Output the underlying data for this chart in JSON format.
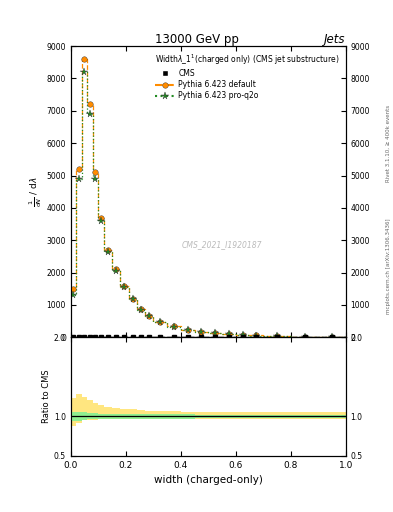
{
  "title": "13000 GeV pp",
  "title_right": "Jets",
  "plot_title": "Width$\\lambda\\_1^1$(charged only) (CMS jet substructure)",
  "watermark": "CMS_2021_I1920187",
  "rivet_label": "Rivet 3.1.10, ≥ 400k events",
  "mcplots_label": "mcplots.cern.ch [arXiv:1306.3436]",
  "xlabel": "width (charged-only)",
  "ylim_main": [
    0,
    9000
  ],
  "ylim_ratio": [
    0.5,
    2.0
  ],
  "x_bins": [
    0.0,
    0.02,
    0.04,
    0.06,
    0.08,
    0.1,
    0.12,
    0.15,
    0.18,
    0.21,
    0.24,
    0.27,
    0.3,
    0.35,
    0.4,
    0.45,
    0.5,
    0.55,
    0.6,
    0.65,
    0.7,
    0.8,
    0.9,
    1.0
  ],
  "pythia_default_y": [
    1500,
    5200,
    8600,
    7200,
    5100,
    3700,
    2700,
    2100,
    1600,
    1200,
    880,
    660,
    470,
    340,
    235,
    175,
    132,
    98,
    75,
    58,
    40,
    20,
    9
  ],
  "pythia_proq2o_y": [
    1300,
    4900,
    8200,
    6900,
    4900,
    3600,
    2650,
    2050,
    1570,
    1170,
    860,
    645,
    460,
    332,
    230,
    170,
    129,
    96,
    73,
    56,
    38,
    19,
    8
  ],
  "ratio_default_y": [
    1.05,
    1.1,
    1.1,
    1.08,
    1.06,
    1.05,
    1.04,
    1.04,
    1.03,
    1.03,
    1.02,
    1.02,
    1.02,
    1.02,
    1.01,
    1.01,
    1.01,
    1.01,
    1.01,
    1.01,
    1.01,
    1.01,
    1.01
  ],
  "ratio_proq2o_y": [
    1.0,
    1.0,
    1.0,
    1.0,
    1.0,
    1.0,
    1.0,
    1.0,
    1.0,
    1.0,
    1.0,
    1.0,
    1.0,
    1.0,
    1.0,
    1.0,
    1.0,
    1.0,
    1.0,
    1.0,
    1.0,
    1.0,
    1.0
  ],
  "ratio_default_err": [
    0.18,
    0.18,
    0.15,
    0.13,
    0.11,
    0.09,
    0.08,
    0.07,
    0.06,
    0.06,
    0.06,
    0.05,
    0.05,
    0.05,
    0.05,
    0.04,
    0.04,
    0.04,
    0.04,
    0.04,
    0.04,
    0.04,
    0.04
  ],
  "ratio_proq2o_err": [
    0.06,
    0.06,
    0.05,
    0.04,
    0.04,
    0.03,
    0.03,
    0.03,
    0.03,
    0.03,
    0.03,
    0.03,
    0.03,
    0.03,
    0.03,
    0.02,
    0.02,
    0.02,
    0.02,
    0.02,
    0.02,
    0.02,
    0.02
  ],
  "color_cms": "#000000",
  "color_default": "#ff8c00",
  "color_proq2o": "#228b22",
  "color_default_fill": "#ffe680",
  "color_proq2o_fill": "#90ee90",
  "yticks_main": [
    0,
    1000,
    2000,
    3000,
    4000,
    5000,
    6000,
    7000,
    8000,
    9000
  ],
  "yticks_ratio": [
    0.5,
    1.0,
    2.0
  ]
}
